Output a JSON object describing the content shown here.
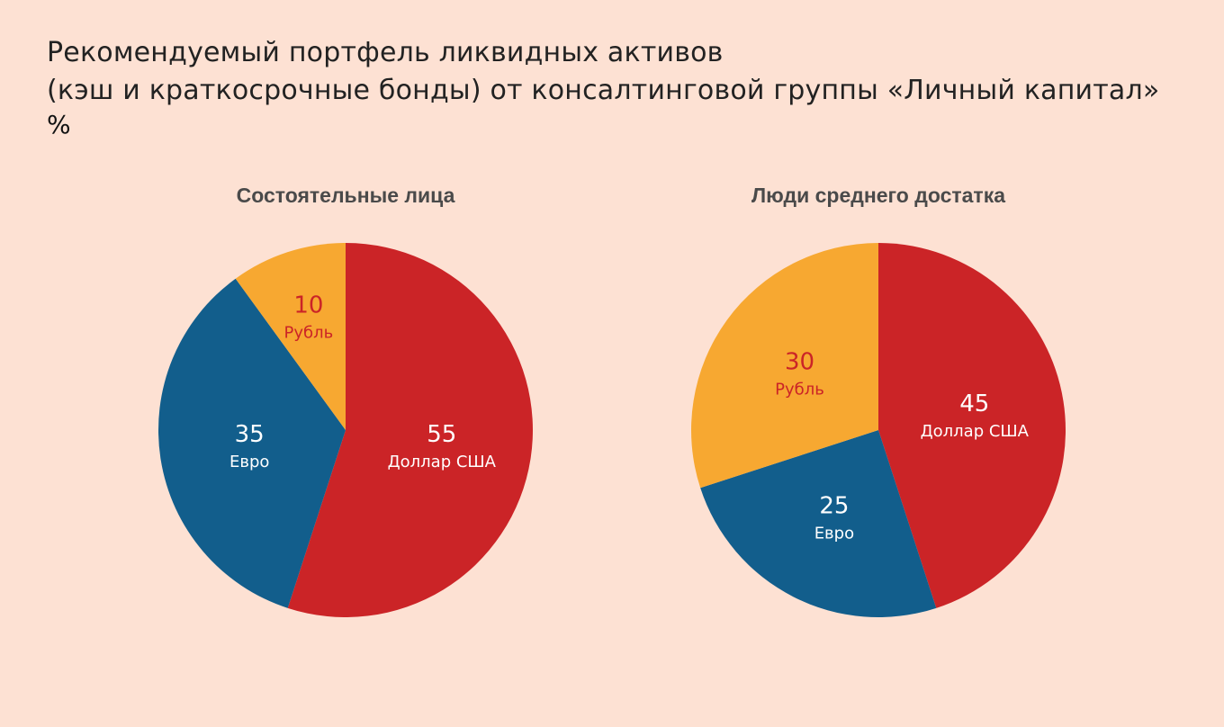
{
  "header": {
    "title_line1": "Рекомендуемый портфель ликвидных активов",
    "title_line2": "(кэш и краткосрочные бонды) от консалтинговой группы «Личный капитал»",
    "unit": "%"
  },
  "colors": {
    "background": "#fde1d3",
    "usd": "#cb2427",
    "eur": "#125e8c",
    "rub": "#f7a831",
    "label_light": "#ffffff",
    "label_rub": "#cb2427"
  },
  "chart_data": [
    {
      "type": "pie",
      "title": "Состоятельные лица",
      "slices": [
        {
          "label": "Доллар США",
          "value": 55,
          "color": "#cb2427"
        },
        {
          "label": "Евро",
          "value": 35,
          "color": "#125e8c"
        },
        {
          "label": "Рубль",
          "value": 10,
          "color": "#f7a831"
        }
      ]
    },
    {
      "type": "pie",
      "title": "Люди среднего достатка",
      "slices": [
        {
          "label": "Доллар США",
          "value": 45,
          "color": "#cb2427"
        },
        {
          "label": "Евро",
          "value": 25,
          "color": "#125e8c"
        },
        {
          "label": "Рубль",
          "value": 30,
          "color": "#f7a831"
        }
      ]
    }
  ]
}
